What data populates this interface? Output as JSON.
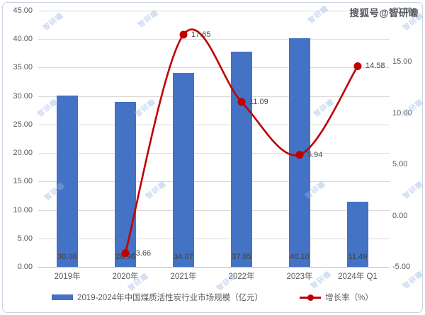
{
  "watermark": {
    "corner": "搜狐号@智研瞻",
    "tile": "智研瞻"
  },
  "legend": [
    {
      "label": "2019-2024年中国煤质活性炭行业市场规模（亿元）",
      "type": "bar",
      "color": "#4472C4"
    },
    {
      "label": "增长率（%）",
      "type": "line",
      "color": "#C00000"
    }
  ],
  "chart_data": {
    "type": "combo",
    "categories": [
      "2019年",
      "2020年",
      "2021年",
      "2022年",
      "2023年",
      "2024年 Q1"
    ],
    "series": [
      {
        "name": "2019-2024年中国煤质活性炭行业市场规模（亿元）",
        "type": "bar",
        "yaxis": "left",
        "color": "#4472C4",
        "values": [
          30.06,
          28.96,
          34.07,
          37.85,
          40.1,
          11.49
        ],
        "labels": [
          "30.06",
          "28.96",
          "34.07",
          "37.85",
          "40.10",
          "11.49"
        ]
      },
      {
        "name": "增长率（%）",
        "type": "line",
        "yaxis": "right",
        "color": "#C00000",
        "values": [
          null,
          -3.66,
          17.65,
          11.09,
          5.94,
          14.58
        ],
        "labels": [
          null,
          "-3.66",
          "17.65",
          "11.09",
          "5.94",
          "14.58"
        ]
      }
    ],
    "left_axis": {
      "min": 0,
      "max": 45,
      "step": 5,
      "tick_labels": [
        "0.00",
        "5.00",
        "10.00",
        "15.00",
        "20.00",
        "25.00",
        "30.00",
        "35.00",
        "40.00",
        "45.00"
      ]
    },
    "right_axis": {
      "min": -5,
      "max": 20,
      "step": 5,
      "tick_labels": [
        "-5.00",
        "0.00",
        "5.00",
        "10.00",
        "15.00",
        "20.00"
      ]
    },
    "grid": true,
    "legend_position": "bottom",
    "title": ""
  },
  "colors": {
    "bar": "#4472C4",
    "line": "#C00000",
    "grid": "#D9D9D9",
    "axis_line": "#BFBFBF",
    "tick_text": "#595959",
    "data_label": "#404040",
    "watermark_tile": "#9CB8E0",
    "border": "#CCD4E0"
  }
}
